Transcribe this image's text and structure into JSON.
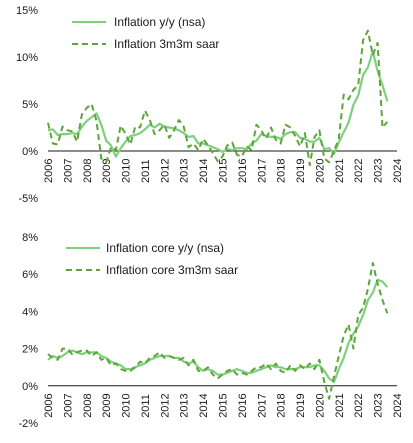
{
  "chart_data": [
    {
      "type": "line",
      "title": "",
      "xlabel": "",
      "ylabel": "",
      "ylim": [
        -5,
        15
      ],
      "y_ticks": [
        -5,
        0,
        5,
        10,
        15
      ],
      "y_tick_labels": [
        "-5%",
        "0%",
        "5%",
        "10%",
        "15%"
      ],
      "x_ticks": [
        2006,
        2007,
        2008,
        2009,
        2010,
        2011,
        2012,
        2013,
        2014,
        2015,
        2016,
        2017,
        2018,
        2019,
        2020,
        2021,
        2022,
        2023,
        2024
      ],
      "x_tick_labels": [
        "2006",
        "2007",
        "2008",
        "2009",
        "2010",
        "2011",
        "2012",
        "2013",
        "2014",
        "2015",
        "2016",
        "2017",
        "2018",
        "2019",
        "2020",
        "2021",
        "2022",
        "2023",
        "2024"
      ],
      "grid": false,
      "legend_position": "top-left",
      "series": [
        {
          "name": "Inflation y/y (nsa)",
          "style": "solid",
          "color": "#7dd17d",
          "x": [
            2006.0,
            2006.25,
            2006.5,
            2006.75,
            2007.0,
            2007.25,
            2007.5,
            2007.75,
            2008.0,
            2008.25,
            2008.5,
            2008.75,
            2009.0,
            2009.25,
            2009.5,
            2009.75,
            2010.0,
            2010.25,
            2010.5,
            2010.75,
            2011.0,
            2011.25,
            2011.5,
            2011.75,
            2012.0,
            2012.25,
            2012.5,
            2012.75,
            2013.0,
            2013.25,
            2013.5,
            2013.75,
            2014.0,
            2014.25,
            2014.5,
            2014.75,
            2015.0,
            2015.25,
            2015.5,
            2015.75,
            2016.0,
            2016.25,
            2016.5,
            2016.75,
            2017.0,
            2017.25,
            2017.5,
            2017.75,
            2018.0,
            2018.25,
            2018.5,
            2018.75,
            2019.0,
            2019.25,
            2019.5,
            2019.75,
            2020.0,
            2020.25,
            2020.5,
            2020.75,
            2021.0,
            2021.25,
            2021.5,
            2021.75,
            2022.0,
            2022.25,
            2022.5,
            2022.75,
            2023.0,
            2023.25,
            2023.5
          ],
          "values": [
            2.2,
            2.3,
            1.7,
            1.8,
            1.8,
            1.9,
            1.8,
            2.6,
            3.2,
            3.6,
            4.0,
            2.8,
            1.1,
            0.6,
            -0.6,
            0.3,
            1.0,
            1.6,
            1.7,
            1.9,
            2.3,
            2.8,
            2.5,
            2.9,
            2.6,
            2.5,
            2.4,
            2.2,
            1.9,
            1.5,
            1.6,
            0.8,
            0.8,
            0.6,
            0.4,
            0.2,
            -0.1,
            0.2,
            0.1,
            0.3,
            0.3,
            0.2,
            0.8,
            1.1,
            1.8,
            1.6,
            1.5,
            1.5,
            1.3,
            1.8,
            2.0,
            2.0,
            1.4,
            1.3,
            1.0,
            1.0,
            1.4,
            0.2,
            0.3,
            -0.3,
            0.9,
            2.0,
            3.0,
            4.9,
            5.9,
            8.1,
            8.9,
            10.6,
            8.5,
            7.0,
            5.3
          ]
        },
        {
          "name": "Inflation 3m3m saar",
          "style": "dashed",
          "color": "#5ea43a",
          "x": [
            2006.0,
            2006.25,
            2006.5,
            2006.75,
            2007.0,
            2007.25,
            2007.5,
            2007.75,
            2008.0,
            2008.25,
            2008.5,
            2008.75,
            2009.0,
            2009.25,
            2009.5,
            2009.75,
            2010.0,
            2010.25,
            2010.5,
            2010.75,
            2011.0,
            2011.25,
            2011.5,
            2011.75,
            2012.0,
            2012.25,
            2012.5,
            2012.75,
            2013.0,
            2013.25,
            2013.5,
            2013.75,
            2014.0,
            2014.25,
            2014.5,
            2014.75,
            2015.0,
            2015.25,
            2015.5,
            2015.75,
            2016.0,
            2016.25,
            2016.5,
            2016.75,
            2017.0,
            2017.25,
            2017.5,
            2017.75,
            2018.0,
            2018.25,
            2018.5,
            2018.75,
            2019.0,
            2019.25,
            2019.5,
            2019.75,
            2020.0,
            2020.25,
            2020.5,
            2020.75,
            2021.0,
            2021.25,
            2021.5,
            2021.75,
            2022.0,
            2022.25,
            2022.5,
            2022.75,
            2023.0,
            2023.25,
            2023.5
          ],
          "values": [
            3.0,
            0.8,
            0.7,
            2.6,
            2.2,
            2.1,
            1.0,
            3.9,
            4.6,
            5.0,
            3.2,
            -0.8,
            -1.2,
            0.4,
            0.1,
            2.7,
            1.8,
            0.7,
            2.6,
            2.5,
            4.3,
            3.3,
            1.8,
            2.2,
            2.8,
            1.4,
            2.2,
            3.3,
            2.6,
            0.4,
            0.8,
            0.1,
            1.3,
            0.6,
            -0.2,
            -1.1,
            -0.6,
            0.6,
            0.9,
            -0.4,
            -0.6,
            0.5,
            0.1,
            2.8,
            2.2,
            1.3,
            2.5,
            1.2,
            0.8,
            2.8,
            2.5,
            1.6,
            0.5,
            1.9,
            -1.5,
            1.5,
            2.2,
            -0.8,
            -1.2,
            0.0,
            1.3,
            6.0,
            5.5,
            6.5,
            7.0,
            11.8,
            12.8,
            10.2,
            11.5,
            2.5,
            3.1
          ]
        }
      ]
    },
    {
      "type": "line",
      "title": "",
      "xlabel": "",
      "ylabel": "",
      "ylim": [
        -2,
        8
      ],
      "y_ticks": [
        -2,
        0,
        2,
        4,
        6,
        8
      ],
      "y_tick_labels": [
        "-2%",
        "0%",
        "2%",
        "4%",
        "6%",
        "8%"
      ],
      "x_ticks": [
        2006,
        2007,
        2008,
        2009,
        2010,
        2011,
        2012,
        2013,
        2014,
        2015,
        2016,
        2017,
        2018,
        2019,
        2020,
        2021,
        2022,
        2023,
        2024
      ],
      "x_tick_labels": [
        "2006",
        "2007",
        "2008",
        "2009",
        "2010",
        "2011",
        "2012",
        "2013",
        "2014",
        "2015",
        "2016",
        "2017",
        "2018",
        "2019",
        "2020",
        "2021",
        "2022",
        "2023",
        "2024"
      ],
      "grid": false,
      "legend_position": "top-left",
      "series": [
        {
          "name": "Inflation core y/y (nsa)",
          "style": "solid",
          "color": "#7dd17d",
          "x": [
            2006.0,
            2006.25,
            2006.5,
            2006.75,
            2007.0,
            2007.25,
            2007.5,
            2007.75,
            2008.0,
            2008.25,
            2008.5,
            2008.75,
            2009.0,
            2009.25,
            2009.5,
            2009.75,
            2010.0,
            2010.25,
            2010.5,
            2010.75,
            2011.0,
            2011.25,
            2011.5,
            2011.75,
            2012.0,
            2012.25,
            2012.5,
            2012.75,
            2013.0,
            2013.25,
            2013.5,
            2013.75,
            2014.0,
            2014.25,
            2014.5,
            2014.75,
            2015.0,
            2015.25,
            2015.5,
            2015.75,
            2016.0,
            2016.25,
            2016.5,
            2016.75,
            2017.0,
            2017.25,
            2017.5,
            2017.75,
            2018.0,
            2018.25,
            2018.5,
            2018.75,
            2019.0,
            2019.25,
            2019.5,
            2019.75,
            2020.0,
            2020.25,
            2020.5,
            2020.75,
            2021.0,
            2021.25,
            2021.5,
            2021.75,
            2022.0,
            2022.25,
            2022.5,
            2022.75,
            2023.0,
            2023.25,
            2023.5
          ],
          "values": [
            1.4,
            1.6,
            1.5,
            1.6,
            1.8,
            1.9,
            1.8,
            1.7,
            1.8,
            1.8,
            1.8,
            1.6,
            1.5,
            1.3,
            1.2,
            1.1,
            0.9,
            0.9,
            1.0,
            1.1,
            1.2,
            1.4,
            1.5,
            1.6,
            1.6,
            1.6,
            1.5,
            1.5,
            1.3,
            1.2,
            1.3,
            1.0,
            0.8,
            0.9,
            0.8,
            0.6,
            0.6,
            0.7,
            0.8,
            0.9,
            0.8,
            0.7,
            0.7,
            0.8,
            0.9,
            1.0,
            1.1,
            1.0,
            1.0,
            0.9,
            0.9,
            0.9,
            1.0,
            1.0,
            1.0,
            1.1,
            1.1,
            0.8,
            0.4,
            0.2,
            0.9,
            1.5,
            2.3,
            2.8,
            3.2,
            3.8,
            4.6,
            5.0,
            5.7,
            5.6,
            5.3
          ]
        },
        {
          "name": "Inflation core 3m3m saar",
          "style": "dashed",
          "color": "#5ea43a",
          "x": [
            2006.0,
            2006.25,
            2006.5,
            2006.75,
            2007.0,
            2007.25,
            2007.5,
            2007.75,
            2008.0,
            2008.25,
            2008.5,
            2008.75,
            2009.0,
            2009.25,
            2009.5,
            2009.75,
            2010.0,
            2010.25,
            2010.5,
            2010.75,
            2011.0,
            2011.25,
            2011.5,
            2011.75,
            2012.0,
            2012.25,
            2012.5,
            2012.75,
            2013.0,
            2013.25,
            2013.5,
            2013.75,
            2014.0,
            2014.25,
            2014.5,
            2014.75,
            2015.0,
            2015.25,
            2015.5,
            2015.75,
            2016.0,
            2016.25,
            2016.5,
            2016.75,
            2017.0,
            2017.25,
            2017.5,
            2017.75,
            2018.0,
            2018.25,
            2018.5,
            2018.75,
            2019.0,
            2019.25,
            2019.5,
            2019.75,
            2020.0,
            2020.25,
            2020.5,
            2020.75,
            2021.0,
            2021.25,
            2021.5,
            2021.75,
            2022.0,
            2022.25,
            2022.5,
            2022.75,
            2023.0,
            2023.25,
            2023.5
          ],
          "values": [
            1.7,
            1.5,
            1.4,
            2.0,
            2.0,
            1.7,
            1.8,
            1.9,
            1.9,
            1.6,
            1.8,
            1.4,
            1.5,
            1.1,
            1.2,
            0.9,
            0.8,
            0.8,
            1.0,
            1.3,
            1.2,
            1.5,
            1.6,
            1.8,
            1.5,
            1.6,
            1.5,
            1.4,
            1.5,
            1.1,
            1.4,
            0.8,
            0.8,
            1.0,
            0.6,
            0.4,
            0.6,
            0.8,
            0.9,
            0.6,
            0.7,
            0.6,
            0.8,
            1.0,
            1.0,
            1.2,
            0.9,
            1.2,
            0.8,
            0.7,
            1.1,
            0.8,
            1.1,
            0.9,
            1.2,
            0.9,
            1.4,
            0.2,
            -0.7,
            0.5,
            1.6,
            2.7,
            3.3,
            2.0,
            3.8,
            4.2,
            5.2,
            6.6,
            5.5,
            4.6,
            3.9
          ]
        }
      ]
    }
  ]
}
